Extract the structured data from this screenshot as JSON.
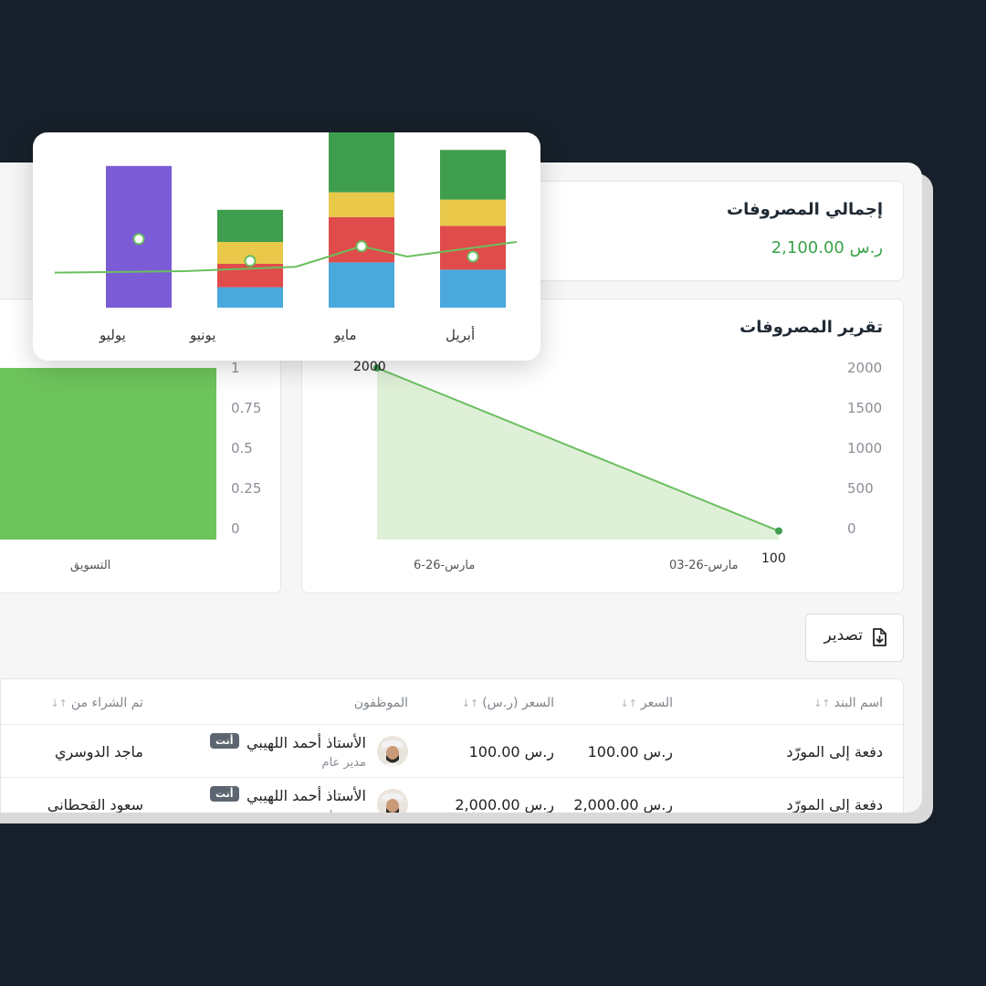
{
  "total": {
    "title": "إجمالي المصروفات",
    "value": "2,100.00 ر.س"
  },
  "report": {
    "title": "تقرير المصروفات",
    "y_ticks": [
      "2000",
      "1500",
      "1000",
      "500",
      "0"
    ],
    "x_ticks": [
      "مارس-26-03",
      "مارس-26-6"
    ],
    "annotations": [
      "2000",
      "100"
    ]
  },
  "category_chart": {
    "y_ticks": [
      "1",
      "0.75",
      "0.5",
      "0.25",
      "0"
    ],
    "category_label": "التسويق"
  },
  "export": {
    "label": "تصدير"
  },
  "table": {
    "headers": {
      "item": "اسم البند",
      "price": "السعر",
      "price_sar": "السعر (ر.س)",
      "employees": "الموظفون",
      "purchased_from": "تم الشراء من"
    },
    "sort_glyph": "↓↑",
    "rows": [
      {
        "item": "دفعة إلى المورّد",
        "price": "100.00 ر.س",
        "price_sar": "100.00 ر.س",
        "employee": "الأستاذ أحمد اللهيبي",
        "badge": "أنت",
        "role": "مدير عام",
        "purchased_from": "ماجد الدوسري"
      },
      {
        "item": "دفعة إلى المورّد",
        "price": "2,000.00 ر.س",
        "price_sar": "2,000.00 ر.س",
        "employee": "الأستاذ أحمد اللهيبي",
        "badge": "أنت",
        "role": "مدير عام",
        "purchased_from": "سعود القحطاني"
      }
    ]
  },
  "chart_data": [
    {
      "type": "area",
      "x": [
        "مارس-26-6",
        "مارس-26-03"
      ],
      "values": [
        2000,
        100
      ],
      "ylim": [
        0,
        2000
      ],
      "color": "#6abf5e"
    },
    {
      "type": "bar",
      "categories": [
        "التسويق"
      ],
      "values": [
        1
      ],
      "ylim": [
        0,
        1
      ],
      "color": "#6ec45c"
    },
    {
      "type": "bar",
      "stacked": true,
      "categories": [
        "أبريل",
        "مايو",
        "يونيو",
        "يوليو"
      ],
      "segment_colors": [
        "#4aa8dc",
        "#e04b4b",
        "#e9c84a",
        "#3f9e4e",
        "#7b5bd6"
      ],
      "stacks": [
        [
          0.26,
          0.3,
          0.18,
          0.34,
          0
        ],
        [
          0.31,
          0.31,
          0.17,
          0.58,
          0
        ],
        [
          0.14,
          0.16,
          0.15,
          0.22,
          0
        ],
        [
          0,
          0,
          0,
          0,
          0.97
        ]
      ],
      "line": [
        0.35,
        0.42,
        0.28,
        0.25
      ],
      "markers": [
        0.35,
        0.42,
        0.32,
        0.47
      ],
      "line_color": "#6abf5e"
    }
  ]
}
